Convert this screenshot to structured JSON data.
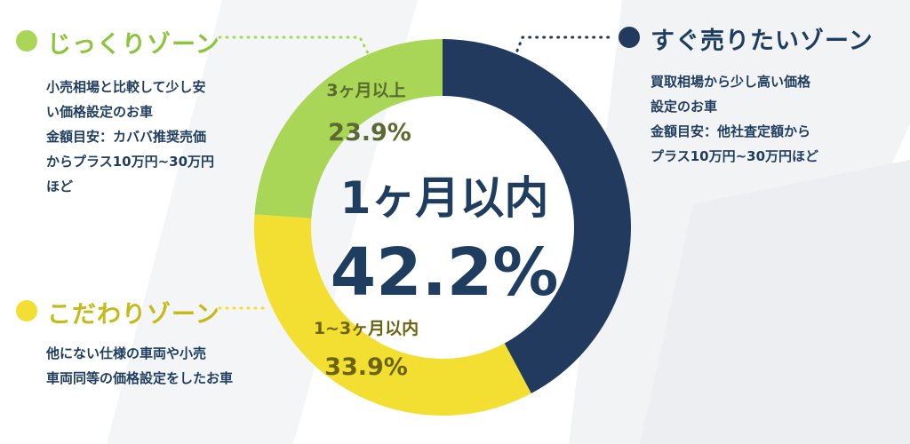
{
  "colors": {
    "navy": "#223a5e",
    "lime": "#a9d656",
    "yellow": "#f2df32",
    "text": "#1f3d5e",
    "lime_title": "#8cc43e",
    "yellow_title": "#c4ba18"
  },
  "zones": {
    "slow": {
      "title": "じっくりゾーン",
      "desc": [
        "小売相場と比較して少し安",
        "い価格設定のお車",
        "金額目安：カババ推奨売価",
        "からプラス10万円~30万円",
        "ほど"
      ]
    },
    "picky": {
      "title": "こだわりゾーン",
      "desc": [
        "他にない仕様の車両や小売",
        "車両同等の価格設定をしたお車"
      ]
    },
    "quick": {
      "title": "すぐ売りたいゾーン",
      "desc": [
        "買取相場から少し高い価格",
        "設定のお車",
        "金額目安：他社査定額から",
        "プラス10万円~30万円ほど"
      ]
    }
  },
  "chart_data": {
    "type": "pie",
    "donut": true,
    "series": [
      {
        "name": "1ヶ月以内",
        "value": 42.2,
        "color": "#223a5e",
        "label": "42.2%"
      },
      {
        "name": "1~3ヶ月以内",
        "value": 33.9,
        "color": "#f2df32",
        "label": "33.9%"
      },
      {
        "name": "3ヶ月以上",
        "value": 23.9,
        "color": "#a9d656",
        "label": "23.9%"
      }
    ],
    "center": {
      "line1": "1ヶ月以内",
      "line2": "42.2%"
    }
  }
}
